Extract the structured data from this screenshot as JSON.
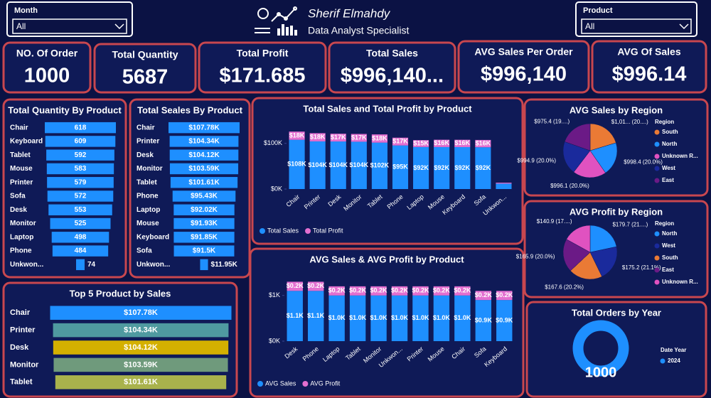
{
  "header": {
    "name": "Sherif Elmahdy",
    "role": "Data Analyst Specialist"
  },
  "filters": [
    {
      "label": "Month",
      "value": "All"
    },
    {
      "label": "Product",
      "value": "All"
    }
  ],
  "kpis": [
    {
      "label": "NO. Of Order",
      "value": "1000"
    },
    {
      "label": "Total Quantity",
      "value": "5687"
    },
    {
      "label": "Total Profit",
      "value": "$171.685"
    },
    {
      "label": "Total Sales",
      "value": "$996,140..."
    },
    {
      "label": "AVG Sales Per Order",
      "value": "$996,140"
    },
    {
      "label": "AVG Of Sales",
      "value": "$996.14"
    }
  ],
  "chart_data": [
    {
      "type": "funnel",
      "title": "Total Quantity By Product",
      "categories": [
        "Chair",
        "Keyboard",
        "Tablet",
        "Mouse",
        "Printer",
        "Sofa",
        "Desk",
        "Monitor",
        "Laptop",
        "Phone",
        "Unkwon..."
      ],
      "values": [
        618,
        609,
        592,
        583,
        579,
        572,
        553,
        525,
        498,
        484,
        74
      ],
      "color": "#1e8fff"
    },
    {
      "type": "funnel",
      "title": "Total Seales By Product",
      "categories": [
        "Chair",
        "Printer",
        "Desk",
        "Monitor",
        "Tablet",
        "Phone",
        "Laptop",
        "Mouse",
        "Keyboard",
        "Sofa",
        "Unkwon..."
      ],
      "values": [
        107780,
        104340,
        104120,
        103590,
        101610,
        95430,
        92020,
        91930,
        91850,
        91500,
        11950
      ],
      "value_labels": [
        "$107.78K",
        "$104.34K",
        "$104.12K",
        "$103.59K",
        "$101.61K",
        "$95.43K",
        "$92.02K",
        "$91.93K",
        "$91.85K",
        "$91.5K",
        "$11.95K"
      ],
      "color": "#1e8fff"
    },
    {
      "type": "stacked_bar",
      "title": "Total Sales and Total Profit by Product",
      "categories": [
        "Chair",
        "Printer",
        "Desk",
        "Monitor",
        "Tablet",
        "Phone",
        "Laptop",
        "Mouse",
        "Keyboard",
        "Sofa",
        "Unkwon..."
      ],
      "series": [
        {
          "name": "Total Sales",
          "color": "#1e8fff",
          "values": [
            107780,
            104340,
            104120,
            103590,
            101610,
            95430,
            92020,
            91930,
            91850,
            91500,
            11950
          ],
          "value_labels": [
            "$108K",
            "$104K",
            "$104K",
            "$104K",
            "$102K",
            "$95K",
            "$92K",
            "$92K",
            "$92K",
            "$92K",
            null
          ]
        },
        {
          "name": "Total Profit",
          "color": "#e36fd0",
          "values": [
            18000,
            18000,
            17000,
            17000,
            18000,
            17000,
            15000,
            16000,
            16000,
            16000,
            2000
          ],
          "value_labels": [
            "$18K",
            "$18K",
            "$17K",
            "$17K",
            "$18K",
            "$17K",
            "$15K",
            "$16K",
            "$16K",
            "$16K",
            null
          ]
        }
      ],
      "ylim": [
        0,
        140000
      ],
      "yticks": [
        {
          "value": 0,
          "label": "$0K"
        },
        {
          "value": 100000,
          "label": "$100K"
        }
      ],
      "legend": "bottom-left"
    },
    {
      "type": "stacked_bar",
      "title": "AVG Sales & AVG Profit by Product",
      "categories": [
        "Desk",
        "Phone",
        "Laptop",
        "Tablet",
        "Monitor",
        "Unkwon...",
        "Printer",
        "Mouse",
        "Chair",
        "Sofa",
        "Keyboard"
      ],
      "series": [
        {
          "name": "AVG Sales",
          "color": "#1e8fff",
          "values": [
            1100,
            1100,
            1000,
            1000,
            1000,
            1000,
            1000,
            1000,
            1000,
            900,
            900
          ],
          "value_labels": [
            "$1.1K",
            "$1.1K",
            "$1.0K",
            "$1.0K",
            "$1.0K",
            "$1.0K",
            "$1.0K",
            "$1.0K",
            "$1.0K",
            "$0.9K",
            "$0.9K"
          ]
        },
        {
          "name": "AVG Profit",
          "color": "#e36fd0",
          "values": [
            200,
            200,
            200,
            200,
            200,
            200,
            200,
            200,
            200,
            200,
            200
          ],
          "value_labels": [
            "$0.2K",
            "$0.2K",
            "$0.2K",
            "$0.2K",
            "$0.2K",
            "$0.2K",
            "$0.2K",
            "$0.2K",
            "$0.2K",
            "$0.2K",
            "$0.2K"
          ]
        }
      ],
      "ylim": [
        0,
        1400
      ],
      "yticks": [
        {
          "value": 0,
          "label": "$0K"
        },
        {
          "value": 1000,
          "label": "$1K"
        }
      ],
      "legend": "bottom-left"
    },
    {
      "type": "pie",
      "title": "AVG Sales by Region",
      "legend_title": "Region",
      "categories": [
        "South",
        "North",
        "Unknown R...",
        "West",
        "East"
      ],
      "values": [
        1010,
        998.4,
        996.1,
        994.9,
        975.4
      ],
      "value_labels": [
        "$1,01... (20....)",
        "$998.4 (20.0%)",
        "$996.1 (20.0%)",
        "$994.9 (20.0%)",
        "$975.4 (19....)"
      ],
      "colors": [
        "#ea7a35",
        "#1e8fff",
        "#e052c0",
        "#1a2a9c",
        "#6b1a86"
      ]
    },
    {
      "type": "pie",
      "title": "AVG Profit by Region",
      "legend_title": "Region",
      "categories": [
        "North",
        "West",
        "South",
        "East",
        "Unknown R..."
      ],
      "values": [
        179.7,
        175.2,
        167.6,
        165.9,
        140.9
      ],
      "value_labels": [
        "$179.7 (21....)",
        "$175.2 (21.1%)",
        "$167.6 (20.2%)",
        "$165.9 (20.0%)",
        "$140.9 (17....)"
      ],
      "colors": [
        "#1e8fff",
        "#1a2a9c",
        "#ea7a35",
        "#6b1a86",
        "#e052c0"
      ]
    },
    {
      "type": "funnel",
      "title": "Top 5 Product by Sales",
      "categories": [
        "Chair",
        "Printer",
        "Desk",
        "Monitor",
        "Tablet"
      ],
      "values": [
        107780,
        104340,
        104120,
        103590,
        101610
      ],
      "value_labels": [
        "$107.78K",
        "$104.34K",
        "$104.12K",
        "$103.59K",
        "$101.61K"
      ],
      "colors": [
        "#1e8fff",
        "#4f9aa0",
        "#d4b000",
        "#6f9a7c",
        "#a9b24c"
      ]
    },
    {
      "type": "donut",
      "title": "Total Orders by Year",
      "legend_title": "Date Year",
      "categories": [
        "2024"
      ],
      "values": [
        1000
      ],
      "colors": [
        "#1e8fff"
      ]
    }
  ]
}
